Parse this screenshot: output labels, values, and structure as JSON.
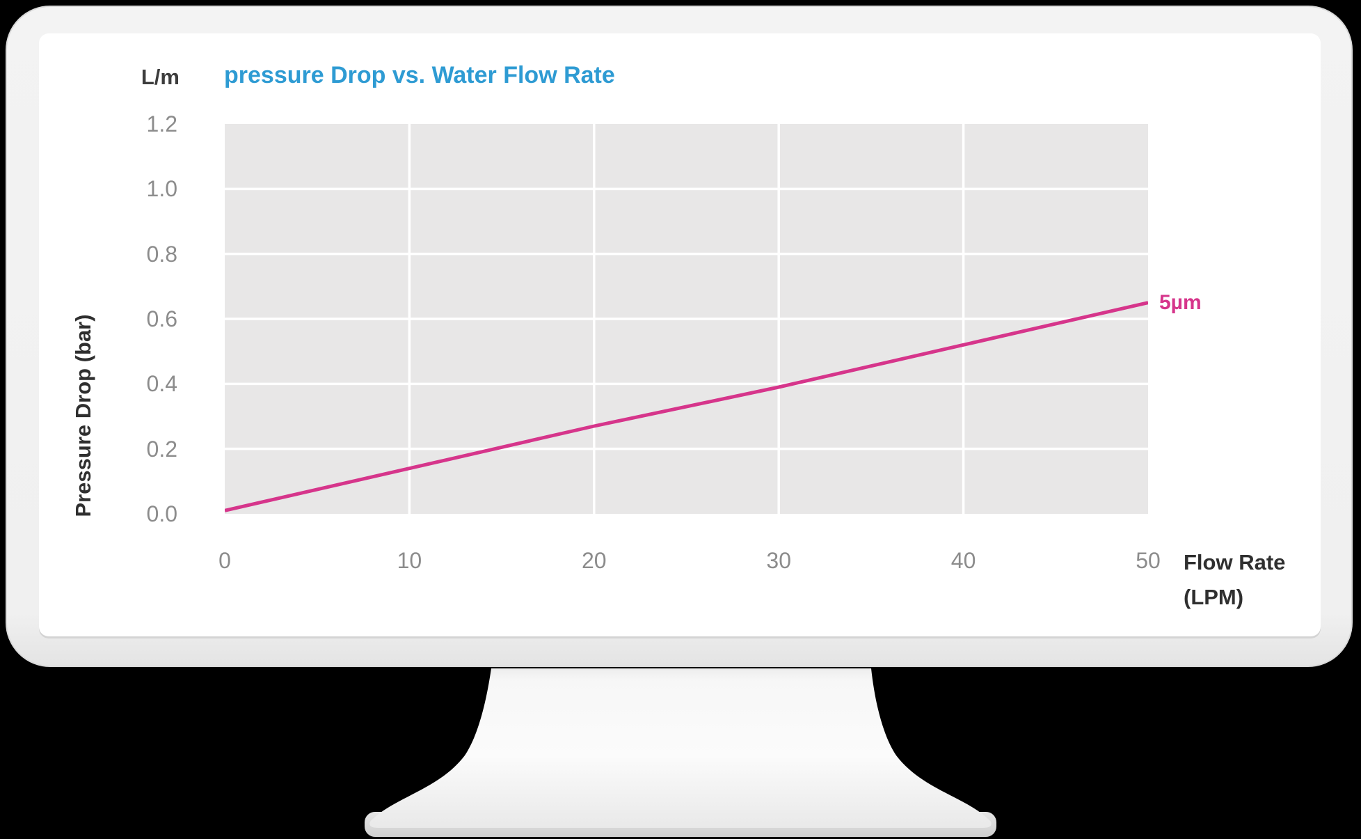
{
  "chart_data": {
    "type": "line",
    "title": "pressure Drop vs. Water Flow Rate",
    "y_unit_label": "L/m",
    "ylabel": "Pressure Drop (bar)",
    "xlabel_line1": "Flow Rate",
    "xlabel_line2": "(LPM)",
    "xlim": [
      0,
      50
    ],
    "ylim": [
      0,
      1.2
    ],
    "xticks": [
      0,
      10,
      20,
      30,
      40,
      50
    ],
    "yticks": [
      0.0,
      0.2,
      0.4,
      0.6,
      0.8,
      1.0,
      1.2
    ],
    "grid": true,
    "legend_position": "right of line end",
    "series": [
      {
        "name": "5µm",
        "color": "#d6358b",
        "x": [
          0,
          10,
          20,
          30,
          40,
          50
        ],
        "y": [
          0.01,
          0.14,
          0.27,
          0.39,
          0.52,
          0.65
        ]
      }
    ]
  },
  "colors": {
    "title": "#2e9bd3",
    "plot_background": "#e8e7e7",
    "gridline": "#ffffff",
    "tick_label": "#8c8c8c",
    "axis_label": "#2f2f2f",
    "page_background": "#000000",
    "monitor_body": "#f1f1f1"
  }
}
